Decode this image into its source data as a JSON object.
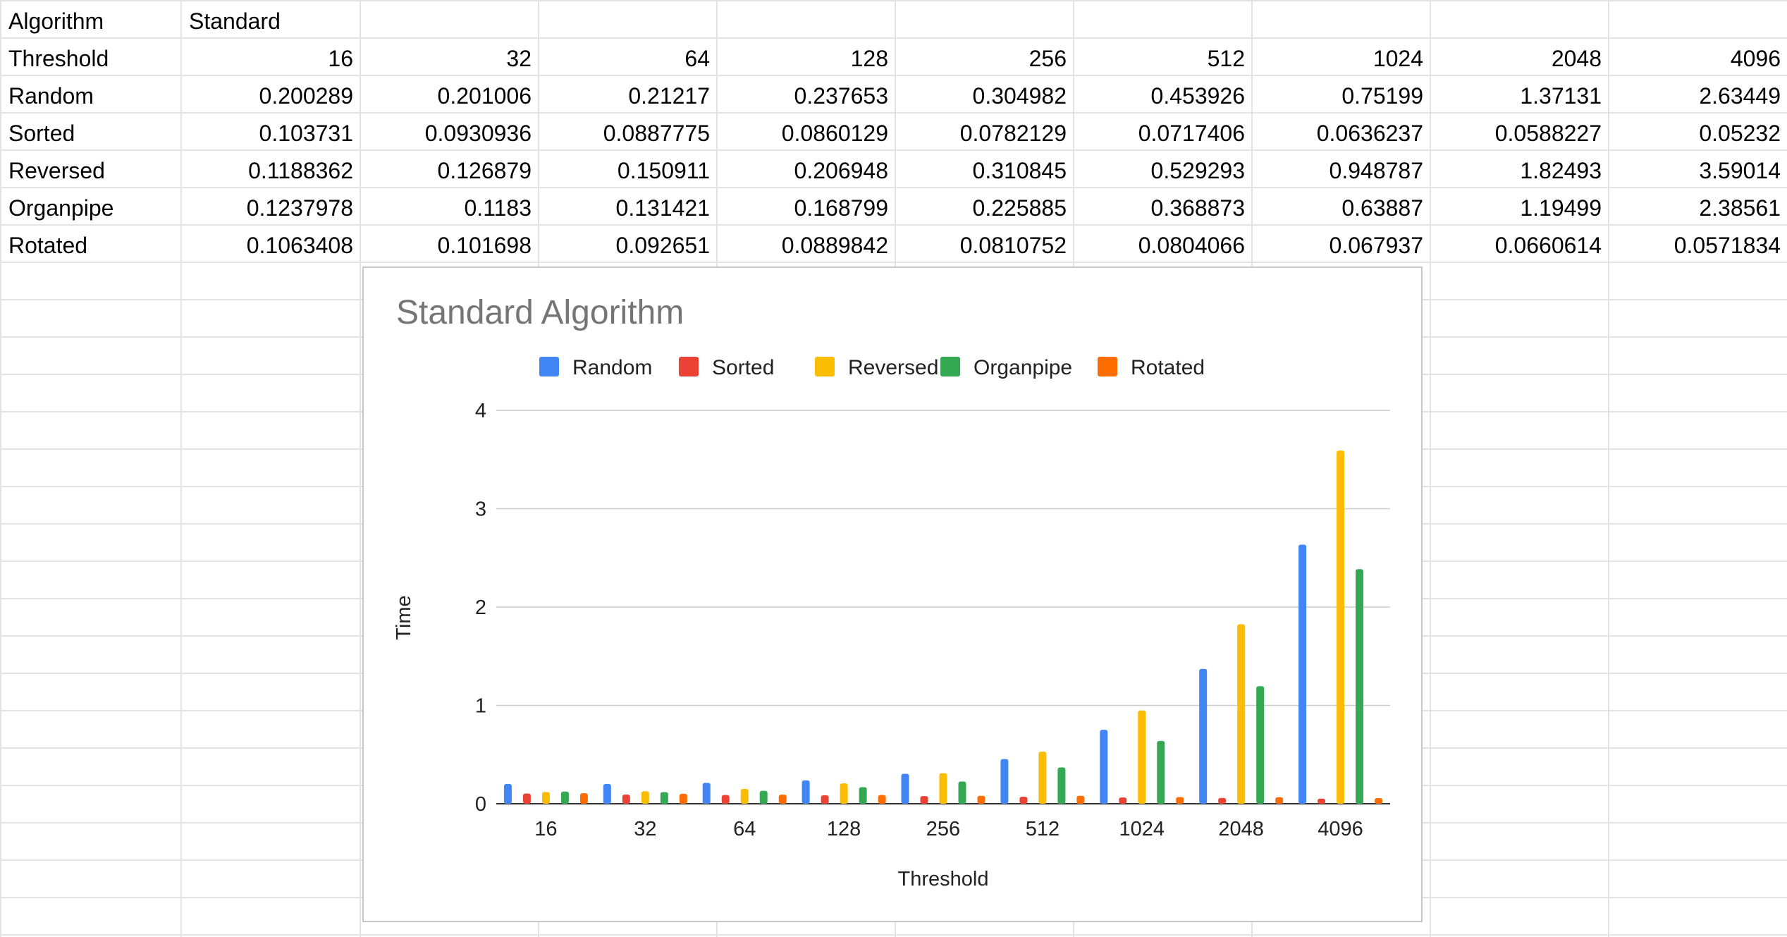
{
  "sheet": {
    "row_algorithm": {
      "label": "Algorithm",
      "value": "Standard"
    },
    "row_threshold": {
      "label": "Threshold",
      "values": [
        "16",
        "32",
        "64",
        "128",
        "256",
        "512",
        "1024",
        "2048",
        "4096"
      ]
    },
    "data_rows": [
      {
        "label": "Random",
        "values": [
          "0.200289",
          "0.201006",
          "0.21217",
          "0.237653",
          "0.304982",
          "0.453926",
          "0.75199",
          "1.37131",
          "2.63449"
        ]
      },
      {
        "label": "Sorted",
        "values": [
          "0.103731",
          "0.0930936",
          "0.0887775",
          "0.0860129",
          "0.0782129",
          "0.0717406",
          "0.0636237",
          "0.0588227",
          "0.05232"
        ]
      },
      {
        "label": "Reversed",
        "values": [
          "0.1188362",
          "0.126879",
          "0.150911",
          "0.206948",
          "0.310845",
          "0.529293",
          "0.948787",
          "1.82493",
          "3.59014"
        ]
      },
      {
        "label": "Organpipe",
        "values": [
          "0.1237978",
          "0.1183",
          "0.131421",
          "0.168799",
          "0.225885",
          "0.368873",
          "0.63887",
          "1.19499",
          "2.38561"
        ]
      },
      {
        "label": "Rotated",
        "values": [
          "0.1063408",
          "0.101698",
          "0.092651",
          "0.0889842",
          "0.0810752",
          "0.0804066",
          "0.067937",
          "0.0660614",
          "0.0571834"
        ]
      }
    ]
  },
  "chart_data": {
    "type": "bar",
    "title": "Standard Algorithm",
    "xlabel": "Threshold",
    "ylabel": "Time",
    "categories": [
      "16",
      "32",
      "64",
      "128",
      "256",
      "512",
      "1024",
      "2048",
      "4096"
    ],
    "ylim": [
      0,
      4
    ],
    "yticks": [
      "0",
      "1",
      "2",
      "3",
      "4"
    ],
    "grid": true,
    "legend_position": "top",
    "series": [
      {
        "name": "Random",
        "color": "#4285f4",
        "values": [
          0.200289,
          0.201006,
          0.21217,
          0.237653,
          0.304982,
          0.453926,
          0.75199,
          1.37131,
          2.63449
        ]
      },
      {
        "name": "Sorted",
        "color": "#ea4335",
        "values": [
          0.103731,
          0.0930936,
          0.0887775,
          0.0860129,
          0.0782129,
          0.0717406,
          0.0636237,
          0.0588227,
          0.05232
        ]
      },
      {
        "name": "Reversed",
        "color": "#fbbc04",
        "values": [
          0.1188362,
          0.126879,
          0.150911,
          0.206948,
          0.310845,
          0.529293,
          0.948787,
          1.82493,
          3.59014
        ]
      },
      {
        "name": "Organpipe",
        "color": "#34a853",
        "values": [
          0.1237978,
          0.1183,
          0.131421,
          0.168799,
          0.225885,
          0.368873,
          0.63887,
          1.19499,
          2.38561
        ]
      },
      {
        "name": "Rotated",
        "color": "#ff6d01",
        "values": [
          0.1063408,
          0.101698,
          0.092651,
          0.0889842,
          0.0810752,
          0.0804066,
          0.067937,
          0.0660614,
          0.0571834
        ]
      }
    ]
  }
}
